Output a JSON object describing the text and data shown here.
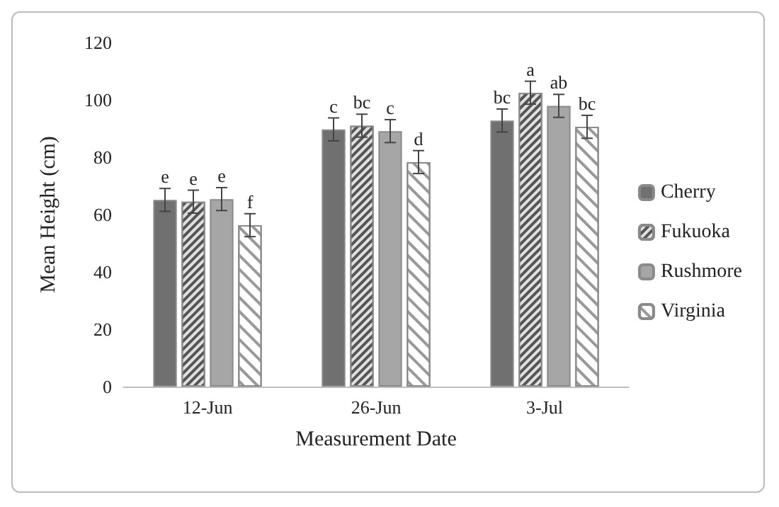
{
  "chart_data": {
    "type": "bar",
    "xlabel": "Measurement Date",
    "ylabel": "Mean Height (cm)",
    "categories": [
      "12-Jun",
      "26-Jun",
      "3-Jul"
    ],
    "series": [
      {
        "name": "Cherry",
        "color": "#707070",
        "values": [
          65.1,
          89.7,
          92.8
        ],
        "errors": [
          4,
          4,
          4
        ],
        "value_labels": [
          "e",
          "c",
          "bc"
        ]
      },
      {
        "name": "Fukuoka",
        "color": "#e0e0e0",
        "values": [
          64.5,
          91,
          102.5
        ],
        "errors": [
          4,
          4,
          4
        ],
        "value_labels": [
          "e",
          "bc",
          "a"
        ]
      },
      {
        "name": "Rushmore",
        "color": "#a6a6a6",
        "values": [
          65.4,
          89.1,
          97.9
        ],
        "errors": [
          4,
          4,
          4
        ],
        "value_labels": [
          "e",
          "c",
          "ab"
        ]
      },
      {
        "name": "Virginia",
        "color": "#ffffff",
        "values": [
          56.3,
          78.3,
          90.6
        ],
        "errors": [
          4,
          4,
          4
        ],
        "value_labels": [
          "f",
          "d",
          "bc"
        ]
      }
    ],
    "ylim": [
      0,
      120
    ],
    "yticks": [
      0,
      20,
      40,
      60,
      80,
      100,
      120
    ],
    "grid": false,
    "legend": "right"
  }
}
